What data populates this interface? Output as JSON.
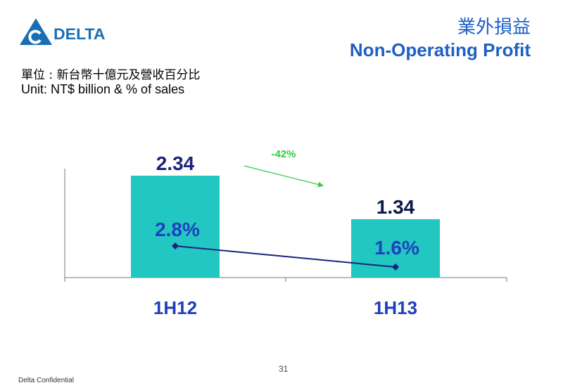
{
  "brand": {
    "name": "DELTA",
    "logo_icon": "delta-triangle-logo",
    "color": "#1a6fb4"
  },
  "header": {
    "title_zh": "業外損益",
    "title_en": "Non-Operating Profit"
  },
  "unit": {
    "zh": "單位 : 新台幣十億元及營收百分比",
    "en": "Unit: NT$ billion & % of sales"
  },
  "chart_data": {
    "type": "bar",
    "categories": [
      "1H12",
      "1H13"
    ],
    "series": [
      {
        "values": [
          2.34,
          1.34
        ],
        "value_labels": [
          "2.34",
          "1.34"
        ],
        "color": "#22c7c2"
      },
      {
        "values": [
          2.8,
          1.6
        ],
        "value_labels": [
          "2.8%",
          "1.6%"
        ],
        "color": "#1a237e",
        "render": "line"
      }
    ],
    "annotation": {
      "text": "-42%",
      "color": "#2ecc40"
    },
    "ylim": [
      0,
      3.2
    ],
    "grid": false
  },
  "footer": {
    "page_number": "31",
    "confidential": "Delta Confidential"
  }
}
